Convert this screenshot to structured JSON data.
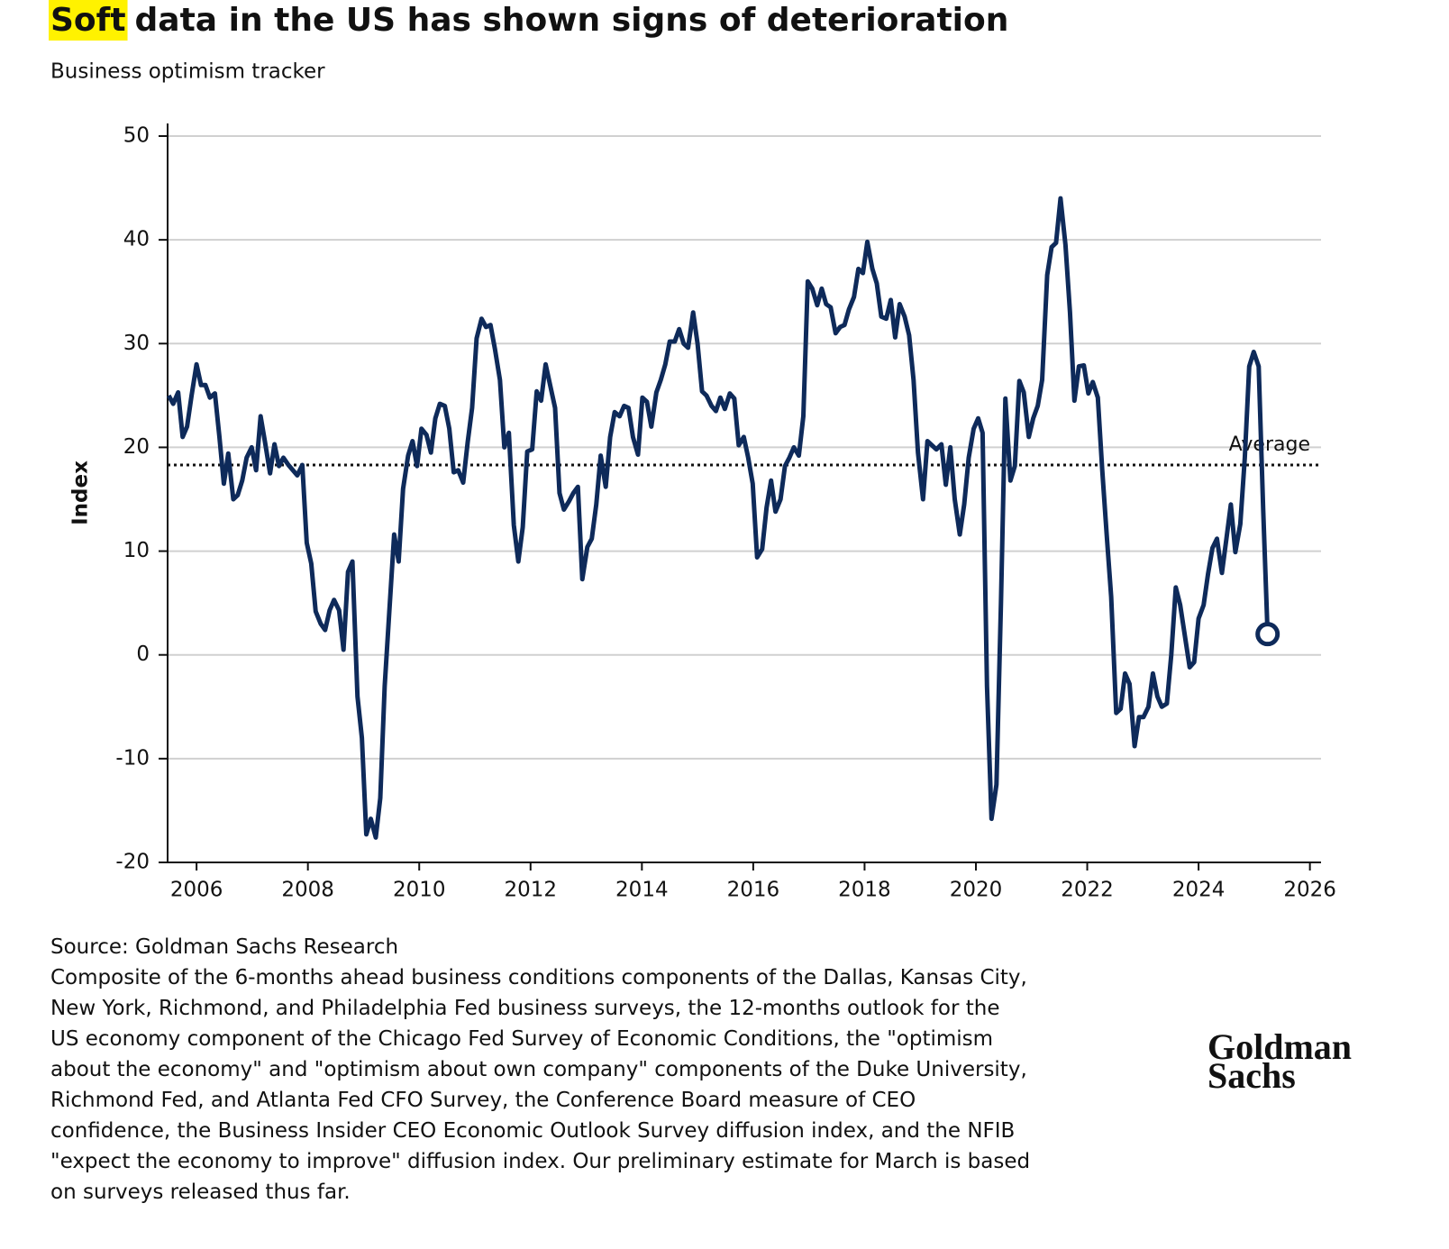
{
  "chart_data": {
    "type": "line",
    "title_highlight": "Soft",
    "title": "data in the US has shown signs of deterioration",
    "subtitle": "Business optimism tracker",
    "y_label": "Index",
    "color": "#0e2a5a",
    "highlight_color": "#fff200",
    "grid": true,
    "end_marker": true,
    "average": {
      "value": 18.3,
      "label": "Average"
    },
    "xlim": [
      2005.48,
      2026.2
    ],
    "xticks": [
      2006,
      2008,
      2010,
      2012,
      2014,
      2016,
      2018,
      2020,
      2022,
      2024,
      2026
    ],
    "ylim": [
      -20,
      50
    ],
    "yticks": [
      -20,
      -10,
      0,
      10,
      20,
      30,
      40,
      50
    ],
    "x": [
      2005.5,
      2005.58,
      2005.67,
      2005.75,
      2005.83,
      2005.91,
      2006.0,
      2006.08,
      2006.16,
      2006.24,
      2006.33,
      2006.41,
      2006.49,
      2006.57,
      2006.66,
      2006.74,
      2006.82,
      2006.9,
      2006.99,
      2007.07,
      2007.15,
      2007.23,
      2007.32,
      2007.4,
      2007.48,
      2007.56,
      2007.65,
      2007.73,
      2007.81,
      2007.9,
      2007.98,
      2008.06,
      2008.14,
      2008.23,
      2008.31,
      2008.39,
      2008.47,
      2008.56,
      2008.64,
      2008.72,
      2008.8,
      2008.89,
      2008.97,
      2009.05,
      2009.13,
      2009.22,
      2009.3,
      2009.38,
      2009.46,
      2009.55,
      2009.63,
      2009.71,
      2009.8,
      2009.88,
      2009.96,
      2010.04,
      2010.13,
      2010.21,
      2010.29,
      2010.37,
      2010.46,
      2010.54,
      2010.62,
      2010.7,
      2010.79,
      2010.87,
      2010.95,
      2011.03,
      2011.12,
      2011.2,
      2011.28,
      2011.36,
      2011.45,
      2011.53,
      2011.61,
      2011.7,
      2011.78,
      2011.86,
      2011.94,
      2012.03,
      2012.11,
      2012.19,
      2012.27,
      2012.36,
      2012.44,
      2012.52,
      2012.6,
      2012.69,
      2012.77,
      2012.85,
      2012.93,
      2013.02,
      2013.1,
      2013.18,
      2013.26,
      2013.35,
      2013.43,
      2013.51,
      2013.6,
      2013.68,
      2013.76,
      2013.84,
      2013.93,
      2014.01,
      2014.09,
      2014.17,
      2014.26,
      2014.34,
      2014.42,
      2014.5,
      2014.59,
      2014.67,
      2014.75,
      2014.83,
      2014.92,
      2015.0,
      2015.08,
      2015.16,
      2015.25,
      2015.33,
      2015.41,
      2015.49,
      2015.58,
      2015.66,
      2015.74,
      2015.83,
      2015.91,
      2015.99,
      2016.07,
      2016.16,
      2016.24,
      2016.32,
      2016.4,
      2016.49,
      2016.57,
      2016.65,
      2016.73,
      2016.82,
      2016.9,
      2016.98,
      2017.06,
      2017.15,
      2017.23,
      2017.31,
      2017.39,
      2017.48,
      2017.56,
      2017.64,
      2017.72,
      2017.81,
      2017.89,
      2017.97,
      2018.05,
      2018.14,
      2018.22,
      2018.3,
      2018.39,
      2018.47,
      2018.55,
      2018.63,
      2018.72,
      2018.8,
      2018.88,
      2018.96,
      2019.05,
      2019.13,
      2019.21,
      2019.29,
      2019.38,
      2019.46,
      2019.54,
      2019.62,
      2019.71,
      2019.79,
      2019.87,
      2019.96,
      2020.04,
      2020.12,
      2020.2,
      2020.28,
      2020.37,
      2020.45,
      2020.53,
      2020.62,
      2020.7,
      2020.78,
      2020.86,
      2020.95,
      2021.03,
      2021.11,
      2021.19,
      2021.28,
      2021.36,
      2021.44,
      2021.52,
      2021.61,
      2021.69,
      2021.77,
      2021.85,
      2021.94,
      2022.02,
      2022.1,
      2022.19,
      2022.27,
      2022.35,
      2022.43,
      2022.52,
      2022.6,
      2022.68,
      2022.76,
      2022.85,
      2022.93,
      2023.01,
      2023.1,
      2023.18,
      2023.26,
      2023.34,
      2023.43,
      2023.51,
      2023.59,
      2023.67,
      2023.76,
      2023.84,
      2023.92,
      2024.0,
      2024.09,
      2024.17,
      2024.25,
      2024.33,
      2024.42,
      2024.5,
      2024.58,
      2024.66,
      2024.75,
      2024.83,
      2024.91,
      2024.99,
      2025.08,
      2025.16,
      2025.24
    ],
    "values": [
      25,
      24.2,
      25.3,
      21,
      22,
      25,
      28,
      26,
      26,
      24.8,
      25.2,
      21,
      16.5,
      19.4,
      15,
      15.4,
      16.8,
      19,
      20,
      17.8,
      23,
      20.5,
      17.5,
      20.3,
      18.2,
      19,
      18.3,
      17.8,
      17.3,
      18.3,
      10.8,
      8.8,
      4.2,
      3,
      2.4,
      4.3,
      5.3,
      4.3,
      0.5,
      8,
      9,
      -4,
      -8,
      -17.3,
      -15.8,
      -17.6,
      -13.8,
      -3,
      4,
      11.6,
      9,
      16,
      19.2,
      20.6,
      18.2,
      21.8,
      21.2,
      19.5,
      22.8,
      24.2,
      24,
      21.8,
      17.6,
      17.8,
      16.6,
      20.5,
      23.8,
      30.5,
      32.4,
      31.6,
      31.8,
      29.5,
      26.5,
      20,
      21.4,
      12.5,
      9,
      12.3,
      19.6,
      19.8,
      25.4,
      24.5,
      28,
      25.8,
      23.8,
      15.6,
      14,
      14.8,
      15.6,
      16.2,
      7.3,
      10.4,
      11.2,
      14.5,
      19.2,
      16.2,
      21,
      23.4,
      23,
      24,
      23.8,
      21,
      19.3,
      24.8,
      24.4,
      22,
      25.3,
      26.5,
      28,
      30.2,
      30.2,
      31.4,
      30,
      29.6,
      33,
      30,
      25.4,
      25,
      24,
      23.5,
      24.8,
      23.7,
      25.2,
      24.7,
      20.2,
      21,
      19,
      16.5,
      9.4,
      10.2,
      14.2,
      16.8,
      13.8,
      15,
      18.2,
      19,
      20,
      19.2,
      23,
      36,
      35.3,
      33.7,
      35.3,
      33.8,
      33.5,
      31,
      31.6,
      31.8,
      33.3,
      34.5,
      37.2,
      36.8,
      39.8,
      37.2,
      35.8,
      32.6,
      32.4,
      34.2,
      30.6,
      33.8,
      32.6,
      30.8,
      26.5,
      19.5,
      15,
      20.6,
      20.2,
      19.8,
      20.3,
      16.4,
      20,
      15,
      11.6,
      14.5,
      19,
      21.8,
      22.8,
      21.4,
      -3,
      -15.8,
      -12.5,
      5,
      24.7,
      16.8,
      18.2,
      26.4,
      25.3,
      21,
      22.8,
      24,
      26.5,
      36.6,
      39.3,
      39.7,
      44,
      39.5,
      33,
      24.5,
      27.8,
      27.9,
      25.2,
      26.3,
      24.8,
      17.8,
      11.5,
      5.6,
      -5.6,
      -5.2,
      -1.8,
      -2.8,
      -8.8,
      -6,
      -6,
      -5,
      -1.8,
      -4,
      -5,
      -4.7,
      0,
      6.5,
      4.8,
      1.6,
      -1.2,
      -0.7,
      3.5,
      4.8,
      7.8,
      10.3,
      11.2,
      7.9,
      11.2,
      14.5,
      9.9,
      12.6,
      19,
      27.8,
      29.2,
      27.8,
      14,
      2
    ],
    "source": "Source: Goldman Sachs Research",
    "note": "Composite of the 6-months ahead business conditions components of the Dallas, Kansas City, New York, Richmond, and Philadelphia Fed business surveys, the 12-months outlook for the US economy component of the Chicago Fed Survey of Economic Conditions, the \"optimism about the economy\" and \"optimism about own company\" components of the Duke University, Richmond Fed, and Atlanta Fed CFO Survey, the Conference Board measure of CEO confidence, the Business Insider CEO Economic Outlook Survey diffusion index, and the NFIB \"expect the economy to improve\" diffusion index. Our preliminary estimate for March is based on surveys released thus far.",
    "logo": [
      "Goldman",
      "Sachs"
    ]
  }
}
